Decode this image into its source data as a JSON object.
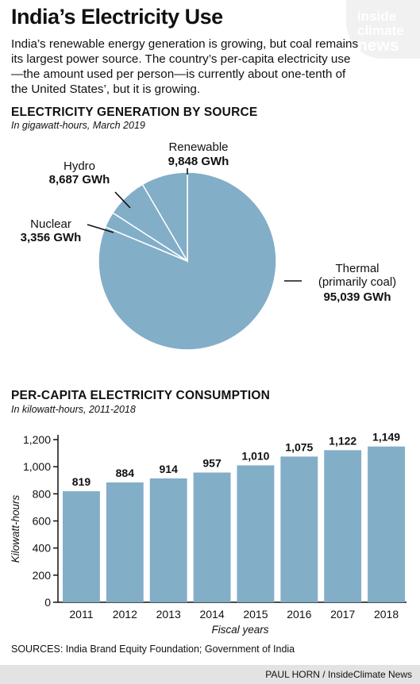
{
  "header": {
    "title": "India’s Electricity Use",
    "intro": "India’s renewable energy generation is growing, but coal remains its largest power source. The country’s per-capita electricity use—the amount used per person—is currently about one-tenth of the United States’, but it is growing."
  },
  "logo": {
    "line1": "inside",
    "line2": "climate",
    "line3": "news"
  },
  "colors": {
    "fill": "#82aec8",
    "stroke": "#ffffff",
    "text": "#111111",
    "credit_bg": "#e3e3e3"
  },
  "pie_section": {
    "title": "ELECTRICITY GENERATION BY SOURCE",
    "subtitle": "In gigawatt-hours, March 2019"
  },
  "bar_section": {
    "title": "PER-CAPITA ELECTRICITY CONSUMPTION",
    "subtitle": "In kilowatt-hours, 2011-2018"
  },
  "chart_data": [
    {
      "type": "pie",
      "title": "ELECTRICITY GENERATION BY SOURCE",
      "subtitle": "In gigawatt-hours, March 2019",
      "slices": [
        {
          "label": "Thermal\n(primarily coal)",
          "value": 95039,
          "value_label": "95,039 GWh"
        },
        {
          "label": "Nuclear",
          "value": 3356,
          "value_label": "3,356 GWh"
        },
        {
          "label": "Hydro",
          "value": 8687,
          "value_label": "8,687 GWh"
        },
        {
          "label": "Renewable",
          "value": 9848,
          "value_label": "9,848 GWh"
        }
      ]
    },
    {
      "type": "bar",
      "title": "PER-CAPITA ELECTRICITY CONSUMPTION",
      "subtitle": "In kilowatt-hours, 2011-2018",
      "categories": [
        "2011",
        "2012",
        "2013",
        "2014",
        "2015",
        "2016",
        "2017",
        "2018"
      ],
      "values": [
        819,
        884,
        914,
        957,
        1010,
        1075,
        1122,
        1149
      ],
      "value_labels": [
        "819",
        "884",
        "914",
        "957",
        "1,010",
        "1,075",
        "1,122",
        "1,149"
      ],
      "xlabel": "Fiscal years",
      "ylabel": "Kilowatt-hours",
      "ylim": [
        0,
        1200
      ],
      "yticks": [
        0,
        200,
        400,
        600,
        800,
        1000,
        1200
      ],
      "ytick_labels": [
        "0",
        "200",
        "400",
        "600",
        "800",
        "1,000",
        "1,200"
      ],
      "grid": false
    }
  ],
  "footer": {
    "sources": "SOURCES: India Brand Equity Foundation; Government of India",
    "credit": "PAUL HORN / InsideClimate News"
  }
}
